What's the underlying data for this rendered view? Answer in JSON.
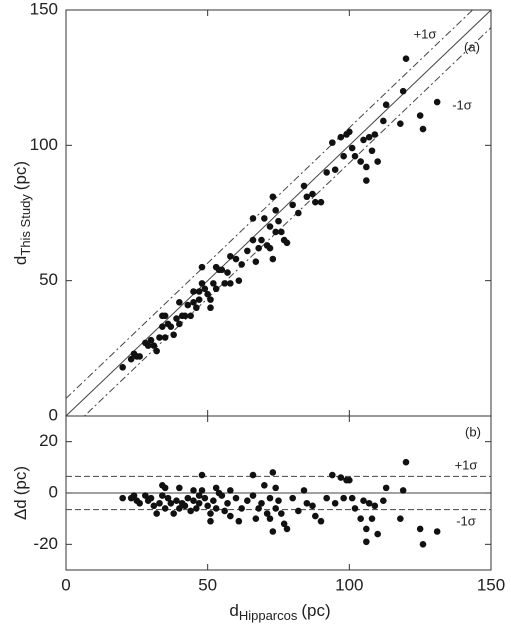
{
  "chart_data": [
    {
      "type": "scatter",
      "panel_label": "(a)",
      "ylabel": {
        "main": "d",
        "sub": "This Study",
        "unit": "(pc)"
      },
      "sigma": 6.5,
      "sigma_labels": [
        "+1σ",
        "-1σ"
      ],
      "xlim": [
        0,
        150
      ],
      "xticks": [
        0,
        50,
        100,
        150
      ],
      "ylim": [
        0,
        150
      ],
      "yticks": [
        0,
        50,
        100,
        150
      ],
      "color": "#111111",
      "x": [
        20,
        23,
        24,
        25,
        26,
        28,
        29,
        30,
        31,
        32,
        33,
        34,
        34,
        35,
        35,
        36,
        37,
        38,
        39,
        40,
        40,
        41,
        42,
        43,
        44,
        45,
        45,
        46,
        47,
        47,
        48,
        48,
        49,
        50,
        51,
        51,
        52,
        53,
        53,
        54,
        55,
        56,
        57,
        58,
        58,
        60,
        61,
        62,
        64,
        66,
        66,
        67,
        68,
        69,
        70,
        71,
        72,
        72,
        73,
        73,
        74,
        74,
        75,
        76,
        77,
        78,
        80,
        82,
        84,
        85,
        87,
        88,
        90,
        92,
        94,
        95,
        97,
        98,
        99,
        100,
        101,
        102,
        104,
        105,
        106,
        106,
        107,
        108,
        109,
        110,
        112,
        113,
        118,
        119,
        120,
        125,
        126,
        131
      ],
      "values": [
        18,
        21,
        23,
        22,
        22,
        27,
        26,
        28,
        26,
        24,
        29,
        37,
        33,
        37,
        29,
        34,
        33,
        30,
        36,
        42,
        34,
        37,
        37,
        41,
        37,
        46,
        42,
        40,
        46,
        43,
        55,
        49,
        47,
        45,
        40,
        43,
        49,
        55,
        47,
        54,
        54,
        49,
        53,
        59,
        49,
        58,
        50,
        56,
        61,
        73,
        65,
        57,
        62,
        65,
        73,
        63,
        70,
        62,
        81,
        58,
        76,
        68,
        72,
        68,
        65,
        64,
        78,
        75,
        85,
        81,
        82,
        79,
        79,
        90,
        101,
        91,
        103,
        96,
        104,
        105,
        99,
        96,
        94,
        102,
        92,
        87,
        103,
        98,
        104,
        94,
        109,
        115,
        108,
        120,
        132,
        111,
        106,
        116
      ]
    },
    {
      "type": "scatter",
      "panel_label": "(b)",
      "ylabel": {
        "main": "Δd",
        "unit": "(pc)"
      },
      "xlabel": {
        "main": "d",
        "sub": "Hipparcos",
        "unit": "(pc)"
      },
      "sigma": 6.5,
      "sigma_labels": [
        "+1σ",
        "-1σ"
      ],
      "xlim": [
        0,
        150
      ],
      "xticks": [
        0,
        50,
        100,
        150
      ],
      "ylim": [
        -30,
        30
      ],
      "yticks": [
        -20,
        0,
        20
      ],
      "color": "#111111",
      "x": [
        20,
        23,
        24,
        25,
        26,
        28,
        29,
        30,
        31,
        32,
        33,
        34,
        34,
        35,
        35,
        36,
        37,
        38,
        39,
        40,
        40,
        41,
        42,
        43,
        44,
        45,
        45,
        46,
        47,
        47,
        48,
        48,
        49,
        50,
        51,
        51,
        52,
        53,
        53,
        54,
        55,
        56,
        57,
        58,
        58,
        60,
        61,
        62,
        64,
        66,
        66,
        67,
        68,
        69,
        70,
        71,
        72,
        72,
        73,
        73,
        74,
        74,
        75,
        76,
        77,
        78,
        80,
        82,
        84,
        85,
        87,
        88,
        90,
        92,
        94,
        95,
        97,
        98,
        99,
        100,
        101,
        102,
        104,
        105,
        106,
        106,
        107,
        108,
        109,
        110,
        112,
        113,
        118,
        119,
        120,
        125,
        126,
        131
      ],
      "values": [
        -2,
        -2,
        -1,
        -3,
        -4,
        -1,
        -3,
        -2,
        -5,
        -8,
        -4,
        3,
        -1,
        2,
        -6,
        -2,
        -4,
        -8,
        -3,
        2,
        -6,
        -4,
        -5,
        -2,
        -7,
        1,
        -3,
        -6,
        -1,
        -4,
        7,
        1,
        -2,
        -5,
        -11,
        -8,
        -3,
        2,
        -6,
        0,
        -1,
        -7,
        -4,
        1,
        -9,
        -2,
        -11,
        -6,
        -3,
        7,
        -1,
        -10,
        -6,
        -4,
        3,
        -8,
        -2,
        -10,
        8,
        -15,
        2,
        -6,
        -3,
        -8,
        -12,
        -14,
        -2,
        -7,
        1,
        -4,
        -5,
        -9,
        -11,
        -2,
        7,
        -4,
        6,
        -2,
        5,
        5,
        -2,
        -6,
        -10,
        -3,
        -14,
        -19,
        -4,
        -10,
        -5,
        -16,
        -3,
        2,
        -10,
        1,
        12,
        -14,
        -20,
        -15
      ]
    }
  ]
}
